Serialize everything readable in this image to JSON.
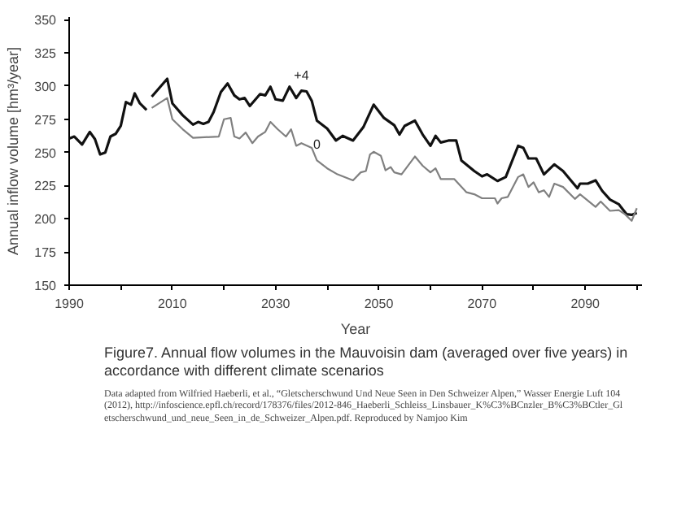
{
  "chart_data": {
    "type": "line",
    "title": "Figure7. Annual flow volumes in the Mauvoisin dam (averaged over five years) in accordance with different climate scenarios",
    "xlabel": "Year",
    "ylabel": "Annual inflow volume [hm³/year]",
    "xlim": [
      1990,
      2101
    ],
    "ylim": [
      150,
      352
    ],
    "xticks": [
      1990,
      {
        "value": 2000,
        "label": null
      },
      2010,
      {
        "value": 2020,
        "label": null
      },
      2030,
      {
        "value": 2040,
        "label": null
      },
      2050,
      {
        "value": 2060,
        "label": null
      },
      2070,
      {
        "value": 2080,
        "label": null
      },
      2090,
      {
        "value": 2100,
        "label": null
      }
    ],
    "yticks": [
      150,
      175,
      200,
      225,
      250,
      275,
      300,
      325,
      350
    ],
    "grid": false,
    "legend": false,
    "line_style": "solid",
    "marker": "none",
    "series": [
      {
        "color": "#111111",
        "x": [
          1990,
          1991,
          1992.5,
          1994,
          1995,
          1996,
          1997,
          1998,
          1999,
          2000,
          2001,
          2002,
          2002.7,
          2003.7,
          2005
        ],
        "values": [
          260.5,
          262,
          256,
          265.5,
          260,
          248.5,
          250,
          262,
          264,
          270,
          288,
          286,
          294.5,
          287,
          282
        ]
      },
      {
        "name": "+4",
        "color": "#111111",
        "x": [
          2006,
          2009,
          2010,
          2012,
          2014,
          2015,
          2016,
          2017,
          2018,
          2019.4,
          2020.7,
          2022,
          2023,
          2024,
          2025,
          2027,
          2028,
          2029,
          2030,
          2031.4,
          2032.7,
          2034,
          2035,
          2036,
          2037,
          2038,
          2040,
          2041.7,
          2043,
          2045,
          2047,
          2049,
          2051,
          2053,
          2054,
          2055,
          2057,
          2058.5,
          2060,
          2061,
          2062,
          2063.5,
          2065,
          2066,
          2068.5,
          2070,
          2071,
          2073,
          2074.6,
          2077,
          2078,
          2079,
          2080.5,
          2082,
          2084,
          2085.7,
          2088.5,
          2089,
          2090.5,
          2092,
          2093.3,
          2094.8,
          2096.5,
          2098,
          2099,
          2100
        ],
        "values": [
          292,
          305.5,
          287,
          278,
          271,
          273,
          271.5,
          273,
          280.5,
          295.5,
          302,
          293,
          290,
          291,
          285,
          294,
          293,
          299.5,
          290,
          289,
          299.5,
          291,
          296.5,
          296,
          289,
          274,
          268,
          259,
          262.5,
          259,
          269,
          286,
          276,
          270.5,
          263.5,
          270,
          274,
          263.5,
          255,
          262.5,
          257.5,
          259,
          259,
          244,
          236,
          232,
          233.5,
          228.5,
          231.5,
          255,
          253.5,
          245.5,
          245.5,
          233.5,
          241,
          236,
          223,
          226.5,
          226.5,
          229,
          221,
          214.5,
          211,
          203.5,
          203,
          204.5
        ]
      },
      {
        "name": "0",
        "color": "#808080",
        "x": [
          2006,
          2009,
          2010,
          2012,
          2014,
          2019,
          2020,
          2021.3,
          2022,
          2023,
          2024.2,
          2025.5,
          2026.6,
          2028,
          2029,
          2030.4,
          2032,
          2033,
          2034,
          2035,
          2037,
          2038,
          2040,
          2042,
          2045,
          2046.5,
          2047.5,
          2048.3,
          2049,
          2050.4,
          2051.3,
          2052.3,
          2053,
          2054.4,
          2057,
          2058.5,
          2060,
          2061,
          2062,
          2064.6,
          2067,
          2068.5,
          2070,
          2072.5,
          2073,
          2073.8,
          2075,
          2077,
          2078,
          2079,
          2080,
          2081,
          2082,
          2083,
          2084,
          2085.7,
          2088,
          2089,
          2092,
          2093,
          2094.8,
          2096.5,
          2097.7,
          2099,
          2100
        ],
        "values": [
          283.5,
          291,
          275,
          267.5,
          261,
          262,
          275,
          276,
          262,
          260.5,
          265,
          257,
          262,
          265.5,
          273,
          267.5,
          262,
          267.5,
          255,
          257,
          253.5,
          244,
          238,
          233.5,
          229,
          235,
          236,
          248.5,
          250.5,
          247.5,
          236.5,
          239,
          235,
          233.5,
          247,
          240,
          235,
          238,
          230,
          230,
          220,
          218.5,
          215.5,
          215.5,
          211.5,
          215.5,
          216.5,
          231.5,
          233.5,
          224,
          227.5,
          220,
          221.5,
          216.5,
          226.5,
          224,
          215,
          218.5,
          209,
          213,
          206,
          206.5,
          203.5,
          198.5,
          208
        ]
      }
    ],
    "annotations": [
      "Data adapted from Wilfried Haeberli, et al., “Gletscherschwund Und Neue Seen in Den Schweizer Alpen,” Wasser Energie Luft 104 (2012), http://infoscience.epfl.ch/record/178376/files/2012-846_Haeberli_Schleiss_Linsbauer_K%C3%BCnzler_B%C3%BCtler_Gletscherschwund_und_neue_Seen_in_de_Schweizer_Alpen.pdf. Reproduced by Namjoo Kim"
    ]
  }
}
